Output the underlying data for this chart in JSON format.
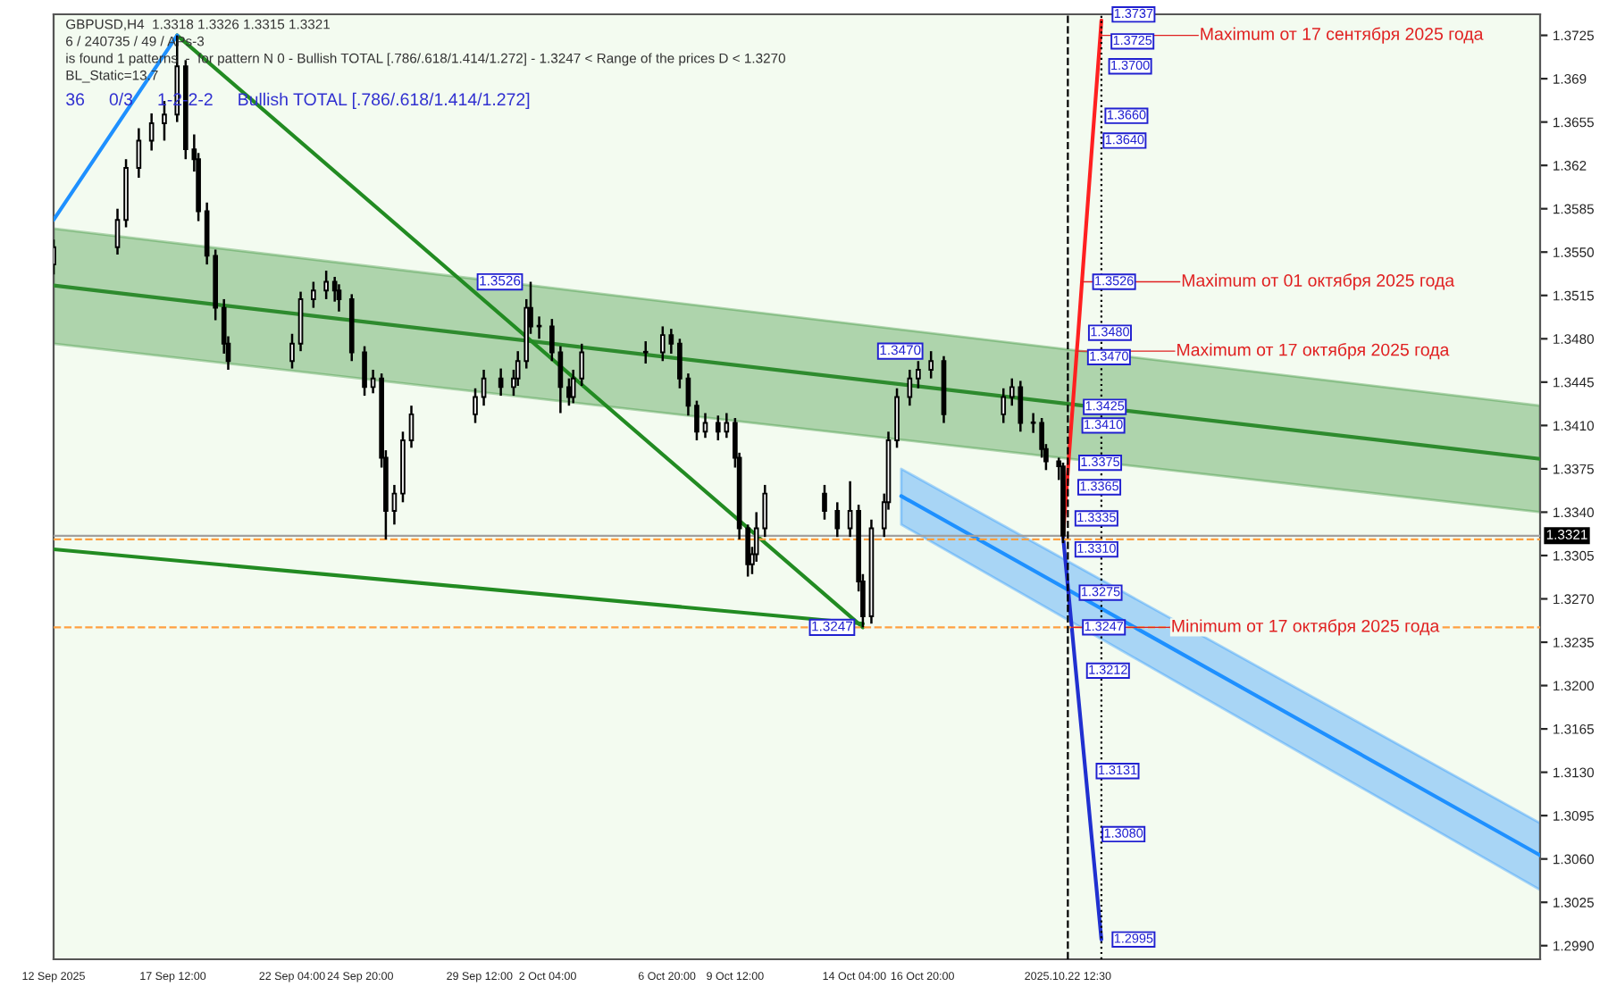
{
  "chart_data": {
    "type": "candlestick",
    "title": "GBPUSD,H4  1.3318 1.3326 1.3315 1.3321",
    "xlim": [
      "2025-09-12T20:00",
      "2025-11-10T00:00"
    ],
    "ylim": [
      1.2979,
      1.3742
    ],
    "xticks": [
      {
        "value": "2025-09-12T20:00",
        "label": "12 Sep 2025"
      },
      {
        "value": "2025-09-17T12:00",
        "label": "17 Sep 12:00"
      },
      {
        "value": "2025-09-22T04:00",
        "label": "22 Sep 04:00"
      },
      {
        "value": "2025-09-24T20:00",
        "label": "24 Sep 20:00"
      },
      {
        "value": "2025-09-29T12:00",
        "label": "29 Sep 12:00"
      },
      {
        "value": "2025-10-02T04:00",
        "label": "2 Oct 04:00"
      },
      {
        "value": "2025-10-06T20:00",
        "label": "6 Oct 20:00"
      },
      {
        "value": "2025-10-09T12:00",
        "label": "9 Oct 12:00"
      },
      {
        "value": "2025-10-14T04:00",
        "label": "14 Oct 04:00"
      },
      {
        "value": "2025-10-16T20:00",
        "label": "16 Oct 20:00"
      },
      {
        "value": "2025-10-22T12:30",
        "label": "2025.10.22 12:30"
      }
    ],
    "yticks": [
      1.3725,
      1.369,
      1.3655,
      1.362,
      1.3585,
      {
        "value": 1.355,
        "label": "1.3550"
      },
      1.3515,
      {
        "value": 1.348,
        "label": "1.3480"
      },
      1.3445,
      {
        "value": 1.341,
        "label": "1.3410"
      },
      1.3375,
      {
        "value": 1.334,
        "label": "1.3340"
      },
      1.3305,
      {
        "value": 1.327,
        "label": "1.3270"
      },
      1.3235,
      {
        "value": 1.32,
        "label": "1.3200"
      },
      1.3165,
      {
        "value": 1.313,
        "label": "1.3130"
      },
      1.3095,
      {
        "value": 1.306,
        "label": "1.3060"
      },
      1.3025,
      {
        "value": 1.299,
        "label": "1.2990"
      }
    ],
    "grid": false,
    "legend": false,
    "series": [
      {
        "color": "#000000",
        "x": [
          "2025-09-12T20:00",
          "2025-09-15T08:00",
          "2025-09-15T16:00",
          "2025-09-16T04:00",
          "2025-09-16T16:00",
          "2025-09-17T04:00",
          "2025-09-17T16:00",
          "2025-09-18T00:00",
          "2025-09-18T08:00",
          "2025-09-18T12:00",
          "2025-09-18T20:00",
          "2025-09-19T04:00",
          "2025-09-19T12:00",
          "2025-09-19T16:00",
          "2025-09-22T04:00",
          "2025-09-22T12:00",
          "2025-09-23T00:00",
          "2025-09-23T12:00",
          "2025-09-23T20:00",
          "2025-09-24T00:00",
          "2025-09-24T12:00",
          "2025-09-25T00:00",
          "2025-09-25T08:00",
          "2025-09-25T16:00",
          "2025-09-25T20:00",
          "2025-09-26T04:00",
          "2025-09-26T12:00",
          "2025-09-26T20:00",
          "2025-09-29T08:00",
          "2025-09-29T16:00",
          "2025-09-30T08:00",
          "2025-09-30T20:00",
          "2025-10-01T00:00",
          "2025-10-01T08:00",
          "2025-10-01T12:00",
          "2025-10-01T20:00",
          "2025-10-02T08:00",
          "2025-10-02T16:00",
          "2025-10-03T00:00",
          "2025-10-03T04:00",
          "2025-10-03T12:00",
          "2025-10-06T00:00",
          "2025-10-06T16:00",
          "2025-10-07T00:00",
          "2025-10-07T08:00",
          "2025-10-07T16:00",
          "2025-10-08T00:00",
          "2025-10-08T08:00",
          "2025-10-08T20:00",
          "2025-10-09T04:00",
          "2025-10-09T12:00",
          "2025-10-09T16:00",
          "2025-10-10T00:00",
          "2025-10-10T04:00",
          "2025-10-10T08:00",
          "2025-10-10T16:00",
          "2025-10-13T00:00",
          "2025-10-13T12:00",
          "2025-10-14T00:00",
          "2025-10-14T08:00",
          "2025-10-14T12:00",
          "2025-10-14T20:00",
          "2025-10-15T08:00",
          "2025-10-15T12:00",
          "2025-10-15T20:00",
          "2025-10-16T08:00",
          "2025-10-16T16:00",
          "2025-10-17T04:00",
          "2025-10-17T16:00",
          "2025-10-20T00:00",
          "2025-10-20T08:00",
          "2025-10-20T16:00",
          "2025-10-21T04:00",
          "2025-10-21T12:00",
          "2025-10-21T16:00",
          "2025-10-22T04:00",
          "2025-10-22T08:00"
        ],
        "ohlc": [
          [
            1.354,
            1.356,
            1.3532,
            1.3554
          ],
          [
            1.3554,
            1.3585,
            1.3548,
            1.3576
          ],
          [
            1.3576,
            1.3625,
            1.357,
            1.3618
          ],
          [
            1.3618,
            1.365,
            1.361,
            1.364
          ],
          [
            1.364,
            1.3662,
            1.3632,
            1.3654
          ],
          [
            1.3654,
            1.3672,
            1.364,
            1.3661
          ],
          [
            1.3661,
            1.3725,
            1.3655,
            1.37
          ],
          [
            1.37,
            1.3705,
            1.3625,
            1.3633
          ],
          [
            1.3633,
            1.3645,
            1.3615,
            1.3625
          ],
          [
            1.3625,
            1.363,
            1.3575,
            1.3583
          ],
          [
            1.3583,
            1.359,
            1.354,
            1.3547
          ],
          [
            1.3547,
            1.3552,
            1.3495,
            1.3505
          ],
          [
            1.3505,
            1.3512,
            1.3468,
            1.3476
          ],
          [
            1.3476,
            1.3482,
            1.3455,
            1.3462
          ],
          [
            1.3462,
            1.3484,
            1.3456,
            1.3476
          ],
          [
            1.3476,
            1.3518,
            1.347,
            1.3512
          ],
          [
            1.3512,
            1.3526,
            1.3505,
            1.3519
          ],
          [
            1.3519,
            1.3535,
            1.3512,
            1.3526
          ],
          [
            1.3526,
            1.353,
            1.351,
            1.3519
          ],
          [
            1.3519,
            1.3524,
            1.3502,
            1.3512
          ],
          [
            1.3512,
            1.3516,
            1.3462,
            1.3469
          ],
          [
            1.3469,
            1.3474,
            1.3434,
            1.3441
          ],
          [
            1.3441,
            1.3455,
            1.3436,
            1.3448
          ],
          [
            1.3448,
            1.3452,
            1.3376,
            1.3384
          ],
          [
            1.3384,
            1.339,
            1.3318,
            1.3341
          ],
          [
            1.3341,
            1.3362,
            1.333,
            1.3355
          ],
          [
            1.3355,
            1.3405,
            1.3348,
            1.3398
          ],
          [
            1.3398,
            1.3426,
            1.3392,
            1.3419
          ],
          [
            1.3419,
            1.344,
            1.3412,
            1.3433
          ],
          [
            1.3433,
            1.3455,
            1.3426,
            1.3448
          ],
          [
            1.3448,
            1.3456,
            1.3434,
            1.3441
          ],
          [
            1.3441,
            1.3455,
            1.3434,
            1.3448
          ],
          [
            1.3448,
            1.347,
            1.3442,
            1.3462
          ],
          [
            1.3462,
            1.3512,
            1.3456,
            1.3505
          ],
          [
            1.3505,
            1.3526,
            1.3484,
            1.349
          ],
          [
            1.349,
            1.3498,
            1.348,
            1.349
          ],
          [
            1.349,
            1.3496,
            1.3462,
            1.3469
          ],
          [
            1.3469,
            1.3474,
            1.342,
            1.3441
          ],
          [
            1.3441,
            1.3448,
            1.3426,
            1.3433
          ],
          [
            1.3433,
            1.3455,
            1.3428,
            1.3448
          ],
          [
            1.3448,
            1.3476,
            1.3442,
            1.3469
          ],
          [
            1.3469,
            1.3478,
            1.346,
            1.3469
          ],
          [
            1.3469,
            1.349,
            1.3462,
            1.3483
          ],
          [
            1.3483,
            1.3488,
            1.3468,
            1.3476
          ],
          [
            1.3476,
            1.348,
            1.344,
            1.3448
          ],
          [
            1.3448,
            1.3452,
            1.3418,
            1.3426
          ],
          [
            1.3426,
            1.343,
            1.3398,
            1.3405
          ],
          [
            1.3405,
            1.342,
            1.34,
            1.3412
          ],
          [
            1.3412,
            1.3418,
            1.3398,
            1.3405
          ],
          [
            1.3405,
            1.342,
            1.34,
            1.3412
          ],
          [
            1.3412,
            1.3416,
            1.3376,
            1.3384
          ],
          [
            1.3384,
            1.3388,
            1.3318,
            1.3327
          ],
          [
            1.3327,
            1.333,
            1.3288,
            1.3298
          ],
          [
            1.3298,
            1.3312,
            1.329,
            1.3306
          ],
          [
            1.3306,
            1.334,
            1.33,
            1.3327
          ],
          [
            1.3327,
            1.3362,
            1.332,
            1.3355
          ],
          [
            1.3355,
            1.3362,
            1.3334,
            1.3341
          ],
          [
            1.3341,
            1.3348,
            1.332,
            1.3327
          ],
          [
            1.3327,
            1.3365,
            1.332,
            1.3341
          ],
          [
            1.3341,
            1.3346,
            1.3276,
            1.3284
          ],
          [
            1.3284,
            1.329,
            1.3247,
            1.3256
          ],
          [
            1.3256,
            1.3334,
            1.325,
            1.3327
          ],
          [
            1.3327,
            1.3355,
            1.332,
            1.3348
          ],
          [
            1.3348,
            1.3405,
            1.3342,
            1.3398
          ],
          [
            1.3398,
            1.344,
            1.3392,
            1.3433
          ],
          [
            1.3433,
            1.3455,
            1.3426,
            1.3448
          ],
          [
            1.3448,
            1.3462,
            1.344,
            1.3455
          ],
          [
            1.3455,
            1.347,
            1.3448,
            1.3462
          ],
          [
            1.3462,
            1.3466,
            1.3412,
            1.3419
          ],
          [
            1.3419,
            1.344,
            1.3412,
            1.3433
          ],
          [
            1.3433,
            1.3448,
            1.3426,
            1.3441
          ],
          [
            1.3441,
            1.3446,
            1.3405,
            1.3412
          ],
          [
            1.3412,
            1.342,
            1.3404,
            1.3412
          ],
          [
            1.3412,
            1.3416,
            1.3384,
            1.3391
          ],
          [
            1.3391,
            1.3395,
            1.3374,
            1.3381
          ],
          [
            1.3381,
            1.3384,
            1.3366,
            1.3377
          ],
          [
            1.3377,
            1.338,
            1.3315,
            1.3321
          ]
        ]
      },
      {
        "type": "line",
        "color": "#2e8b2e",
        "x": [
          "2025-09-12T20:00",
          "2025-11-10T00:00"
        ],
        "values": [
          1.3523,
          1.3383
        ],
        "lower": [
          1.3476,
          1.334
        ],
        "upper": [
          1.3569,
          1.3426
        ]
      },
      {
        "type": "line",
        "color": "#1e90ff",
        "x": [
          "2025-10-16T00:00",
          "2025-11-10T00:00"
        ],
        "values": [
          1.3353,
          1.3063
        ],
        "lower": [
          1.333,
          1.3035
        ],
        "upper": [
          1.3375,
          1.3089
        ]
      },
      {
        "type": "line",
        "color": "#228b22",
        "x": [
          "2025-09-17T16:00",
          "2025-10-14T12:00"
        ],
        "values": [
          1.3725,
          1.3247
        ]
      },
      {
        "type": "line",
        "color": "#228b22",
        "x": [
          "2025-09-12T20:00",
          "2025-10-14T12:00"
        ],
        "values": [
          1.331,
          1.325
        ]
      },
      {
        "type": "line",
        "color": "#1e90ff",
        "x": [
          "2025-09-12T20:00",
          "2025-09-17T16:00"
        ],
        "values": [
          1.3576,
          1.3725
        ]
      },
      {
        "type": "line",
        "color": "#ff2020",
        "x": [
          "2025-10-22T08:00",
          "2025-10-22T09:10",
          "2025-10-22T11:50",
          "2025-10-22T12:40",
          "2025-10-22T15:40",
          "2025-10-22T17:00",
          "2025-10-22T20:55",
          "2025-10-22T21:50",
          "2025-10-23T01:45",
          "2025-10-23T11:35",
          "2025-10-23T13:20",
          "2025-10-23T16:50",
          "2025-10-23T19:00",
          "2025-10-23T20:00"
        ],
        "values": [
          1.3321,
          1.3335,
          1.3365,
          1.3375,
          1.341,
          1.3425,
          1.347,
          1.348,
          1.3526,
          1.364,
          1.366,
          1.37,
          1.3725,
          1.3737
        ]
      },
      {
        "type": "line",
        "color": "#2030d0",
        "x": [
          "2025-10-22T08:00",
          "2025-10-22T09:10",
          "2025-10-22T13:05",
          "2025-10-22T16:10",
          "2025-10-22T20:00",
          "2025-10-23T05:00",
          "2025-10-23T10:35",
          "2025-10-23T20:00"
        ],
        "values": [
          1.3321,
          1.331,
          1.3275,
          1.3247,
          1.3212,
          1.3131,
          1.308,
          1.2995
        ]
      }
    ],
    "ref_lines": [
      {
        "axis": "y",
        "value": 1.3321,
        "label": "1.3321",
        "color": "#a0a0a0",
        "line_style": "solid"
      },
      {
        "axis": "y",
        "value": 1.3318,
        "color": "#ffa040",
        "line_style": "dashed"
      },
      {
        "axis": "y",
        "value": 1.3247,
        "color": "#ffa040",
        "line_style": "dashed"
      },
      {
        "axis": "x",
        "value": "2025-10-22T12:30",
        "color": "#000000",
        "line_style": "dashed"
      },
      {
        "axis": "x",
        "value": "2025-10-23T20:00",
        "color": "#000000",
        "line_style": "dotted"
      }
    ],
    "annotations": [
      "6 / 240735 / 49 / APs-3",
      "is found 1 patterns  -  for pattern N 0 - Bullish TOTAL [.786/.618/1.414/1.272] - 1.3247 < Range of the prices D < 1.3270",
      "BL_Static=13.7",
      "36     0/3     1-2-2-2     Bullish TOTAL [.786/.618/1.414/1.272]",
      {
        "text": "1.3526",
        "x": "2025-10-01T12:00",
        "y": 1.3526
      },
      {
        "text": "1.3470",
        "x": "2025-10-17T04:00",
        "y": 1.347
      },
      {
        "text": "1.3247",
        "x": "2025-10-14T12:00",
        "y": 1.3247
      },
      {
        "text": "1.3737",
        "x": "2025-10-23T20:00",
        "y": 1.3737
      },
      {
        "text": "1.3725",
        "x": "2025-10-23T19:00",
        "y": 1.3725
      },
      {
        "text": "1.3700",
        "x": "2025-10-23T16:50",
        "y": 1.37
      },
      {
        "text": "1.3660",
        "x": "2025-10-23T13:20",
        "y": 1.366
      },
      {
        "text": "1.3640",
        "x": "2025-10-23T11:35",
        "y": 1.364
      },
      {
        "text": "1.3526",
        "x": "2025-10-23T01:45",
        "y": 1.3526
      },
      {
        "text": "1.3480",
        "x": "2025-10-22T21:50",
        "y": 1.348
      },
      {
        "text": "1.3470",
        "x": "2025-10-22T20:55",
        "y": 1.347
      },
      {
        "text": "1.3425",
        "x": "2025-10-22T17:00",
        "y": 1.3425
      },
      {
        "text": "1.3410",
        "x": "2025-10-22T15:40",
        "y": 1.341
      },
      {
        "text": "1.3375",
        "x": "2025-10-22T12:40",
        "y": 1.3375
      },
      {
        "text": "1.3365",
        "x": "2025-10-22T11:50",
        "y": 1.3365
      },
      {
        "text": "1.3335",
        "x": "2025-10-22T09:10",
        "y": 1.3335
      },
      {
        "text": "1.3310",
        "x": "2025-10-22T09:10",
        "y": 1.331
      },
      {
        "text": "1.3275",
        "x": "2025-10-22T13:05",
        "y": 1.3275
      },
      {
        "text": "1.3247",
        "x": "2025-10-22T16:10",
        "y": 1.3247
      },
      {
        "text": "1.3212",
        "x": "2025-10-22T20:00",
        "y": 1.3212
      },
      {
        "text": "1.3131",
        "x": "2025-10-23T05:00",
        "y": 1.3131
      },
      {
        "text": "1.3080",
        "x": "2025-10-23T10:35",
        "y": 1.308
      },
      {
        "text": "1.2995",
        "x": "2025-10-23T20:00",
        "y": 1.2995
      },
      {
        "text": "Maximum от 17 сентября 2025 года",
        "x": "2025-10-23T19:00",
        "y": 1.3725
      },
      {
        "text": "Maximum от 01 октября 2025 года",
        "x": "2025-10-23T01:45",
        "y": 1.3526
      },
      {
        "text": "Maximum от 17 октября 2025 года",
        "x": "2025-10-22T20:55",
        "y": 1.347
      },
      {
        "text": "Minimum от 17 октября 2025 года",
        "x": "2025-10-22T16:10",
        "y": 1.3247
      }
    ]
  }
}
